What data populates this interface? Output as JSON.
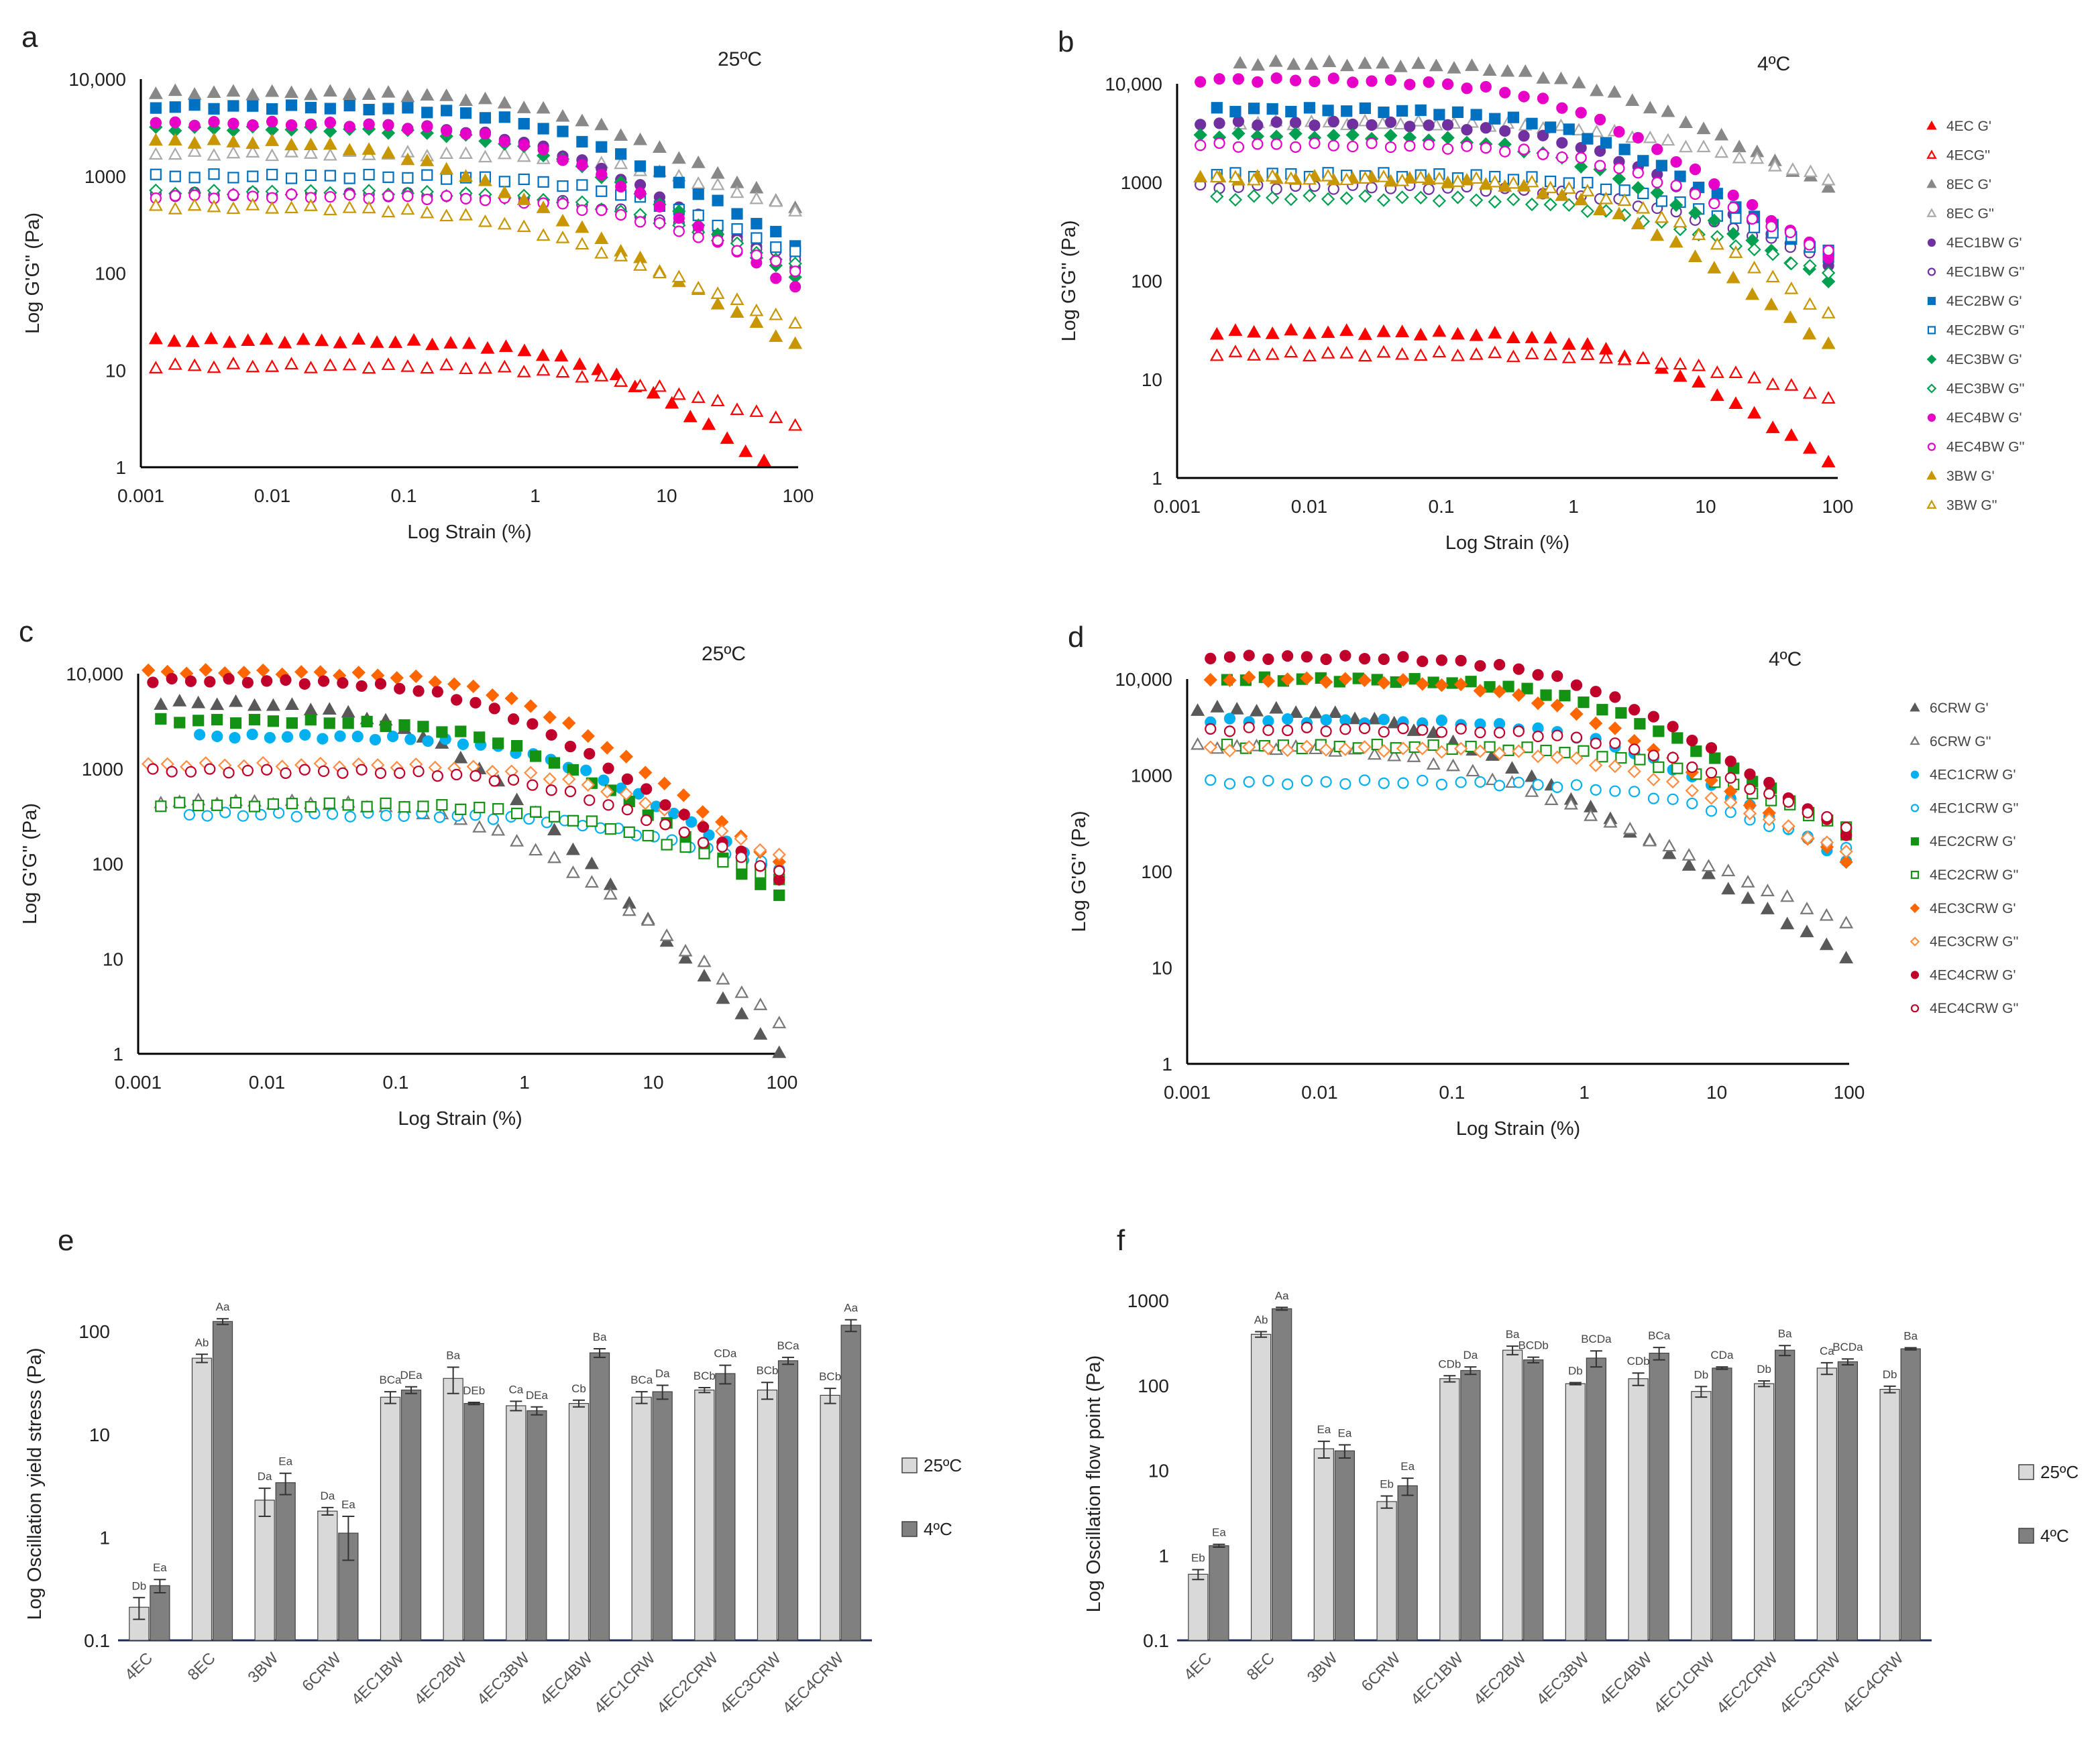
{
  "figure": {
    "panel_labels": [
      "a",
      "b",
      "c",
      "d",
      "e",
      "f"
    ],
    "temperatures": [
      "25ºC",
      "4ºC",
      "25ºC",
      "4ºC"
    ]
  },
  "chart_data": [
    {
      "id": "a",
      "type": "scatter",
      "temp_label": "25ºC",
      "xlabel": "Log Strain (%)",
      "ylabel": "Log G'G'' (Pa)",
      "x_scale": "log",
      "y_scale": "log",
      "xlim": [
        0.001,
        100
      ],
      "ylim": [
        1,
        10000
      ],
      "x_ticks": [
        "0.001",
        "0.01",
        "0.1",
        "1",
        "10",
        "100"
      ],
      "y_ticks": [
        "1",
        "10",
        "100",
        "1000",
        "10,000"
      ],
      "series": [
        {
          "name": "4EC G'",
          "color": "#ff0000",
          "marker": "triangle",
          "filled": true,
          "x_start": 0.0013,
          "x_end": 55,
          "plateau": 20,
          "yc": 3,
          "end": 1.1
        },
        {
          "name": "4ECG''",
          "color": "#ff0000",
          "marker": "triangle",
          "filled": false,
          "x_start": 0.0013,
          "x_end": 95,
          "plateau": 11,
          "yc": 3,
          "end": 2.8
        },
        {
          "name": "8EC G'",
          "color": "#888888",
          "marker": "triangle",
          "filled": true,
          "x_start": 0.0013,
          "x_end": 95,
          "plateau": 7200,
          "yc": 1.2,
          "end": 470
        },
        {
          "name": "8EC G''",
          "color": "#aaaaaa",
          "marker": "triangle",
          "filled": false,
          "x_start": 0.0013,
          "x_end": 95,
          "plateau": 1700,
          "yc": 5,
          "end": 450
        },
        {
          "name": "4EC1BW G'",
          "color": "#7030a0",
          "marker": "circle",
          "filled": true,
          "x_start": 0.0013,
          "x_end": 95,
          "plateau": 3500,
          "yc": 1,
          "end": 110
        },
        {
          "name": "4EC1BW G''",
          "color": "#7030a0",
          "marker": "circle",
          "filled": false,
          "x_start": 0.0013,
          "x_end": 95,
          "plateau": 650,
          "yc": 3,
          "end": 140
        },
        {
          "name": "4EC2BW G'",
          "color": "#0070c0",
          "marker": "square",
          "filled": true,
          "x_start": 0.0013,
          "x_end": 95,
          "plateau": 5200,
          "yc": 1.2,
          "end": 200
        },
        {
          "name": "4EC2BW G''",
          "color": "#0070c0",
          "marker": "square",
          "filled": false,
          "x_start": 0.0013,
          "x_end": 95,
          "plateau": 1000,
          "yc": 4,
          "end": 160
        },
        {
          "name": "4EC3BW G'",
          "color": "#00a050",
          "marker": "diamond",
          "filled": true,
          "x_start": 0.0013,
          "x_end": 95,
          "plateau": 3100,
          "yc": 1,
          "end": 90
        },
        {
          "name": "4EC3BW G''",
          "color": "#00a050",
          "marker": "diamond",
          "filled": false,
          "x_start": 0.0013,
          "x_end": 95,
          "plateau": 680,
          "yc": 3,
          "end": 120
        },
        {
          "name": "4EC4BW G'",
          "color": "#e600c8",
          "marker": "circle",
          "filled": true,
          "x_start": 0.0013,
          "x_end": 95,
          "plateau": 3500,
          "yc": 1,
          "end": 70
        },
        {
          "name": "4EC4BW G''",
          "color": "#e600c8",
          "marker": "circle",
          "filled": false,
          "x_start": 0.0013,
          "x_end": 95,
          "plateau": 620,
          "yc": 3,
          "end": 110
        },
        {
          "name": "3BW G'",
          "color": "#c89600",
          "marker": "triangle",
          "filled": true,
          "x_start": 0.0013,
          "x_end": 95,
          "plateau": 2300,
          "yc": 0.15,
          "end": 18
        },
        {
          "name": "3BW G''",
          "color": "#c89600",
          "marker": "triangle",
          "filled": false,
          "x_start": 0.0013,
          "x_end": 95,
          "plateau": 480,
          "yc": 0.5,
          "end": 30
        }
      ]
    },
    {
      "id": "b",
      "type": "scatter",
      "temp_label": "4ºC",
      "xlabel": "Log Strain (%)",
      "ylabel": "Log G'G'' (Pa)",
      "x_scale": "log",
      "y_scale": "log",
      "xlim": [
        0.001,
        100
      ],
      "ylim": [
        1,
        10000
      ],
      "x_ticks": [
        "0.001",
        "0.01",
        "0.1",
        "1",
        "10",
        "100"
      ],
      "y_ticks": [
        "1",
        "10",
        "100",
        "1000",
        "10,000"
      ],
      "series": [
        {
          "name": "4EC G'",
          "color": "#ff0000",
          "marker": "triangle",
          "filled": true,
          "x_start": 0.002,
          "x_end": 85,
          "plateau": 30,
          "yc": 3,
          "end": 1.5
        },
        {
          "name": "4ECG''",
          "color": "#ff0000",
          "marker": "triangle",
          "filled": false,
          "x_start": 0.002,
          "x_end": 85,
          "plateau": 18,
          "yc": 8,
          "end": 6.5
        },
        {
          "name": "8EC G'",
          "color": "#888888",
          "marker": "triangle",
          "filled": true,
          "x_start": 0.003,
          "x_end": 85,
          "plateau": 16000,
          "yc": 1,
          "end": 900
        },
        {
          "name": "8EC G''",
          "color": "#aaaaaa",
          "marker": "triangle",
          "filled": false,
          "x_start": 0.003,
          "x_end": 85,
          "plateau": 4000,
          "yc": 2,
          "end": 1100
        },
        {
          "name": "4EC1BW G'",
          "color": "#7030a0",
          "marker": "circle",
          "filled": true,
          "x_start": 0.0015,
          "x_end": 85,
          "plateau": 4000,
          "yc": 1,
          "end": 150
        },
        {
          "name": "4EC1BW G''",
          "color": "#7030a0",
          "marker": "circle",
          "filled": false,
          "x_start": 0.0015,
          "x_end": 85,
          "plateau": 900,
          "yc": 2,
          "end": 170
        },
        {
          "name": "4EC2BW G'",
          "color": "#0070c0",
          "marker": "square",
          "filled": true,
          "x_start": 0.002,
          "x_end": 85,
          "plateau": 5500,
          "yc": 1,
          "end": 170
        },
        {
          "name": "4EC2BW G''",
          "color": "#0070c0",
          "marker": "square",
          "filled": false,
          "x_start": 0.002,
          "x_end": 85,
          "plateau": 1200,
          "yc": 2,
          "end": 200
        },
        {
          "name": "4EC3BW G'",
          "color": "#00a050",
          "marker": "diamond",
          "filled": true,
          "x_start": 0.0015,
          "x_end": 85,
          "plateau": 3000,
          "yc": 0.7,
          "end": 100
        },
        {
          "name": "4EC3BW G''",
          "color": "#00a050",
          "marker": "diamond",
          "filled": false,
          "x_start": 0.002,
          "x_end": 85,
          "plateau": 700,
          "yc": 1.5,
          "end": 120
        },
        {
          "name": "4EC4BW G'",
          "color": "#e600c8",
          "marker": "circle",
          "filled": true,
          "x_start": 0.0015,
          "x_end": 85,
          "plateau": 11000,
          "yc": 0.8,
          "end": 180
        },
        {
          "name": "4EC4BW G''",
          "color": "#e600c8",
          "marker": "circle",
          "filled": false,
          "x_start": 0.0015,
          "x_end": 85,
          "plateau": 2400,
          "yc": 1.5,
          "end": 200
        },
        {
          "name": "3BW G'",
          "color": "#c89600",
          "marker": "triangle",
          "filled": true,
          "x_start": 0.0015,
          "x_end": 85,
          "plateau": 1100,
          "yc": 1.5,
          "end": 22
        },
        {
          "name": "3BW G''",
          "color": "#c89600",
          "marker": "triangle",
          "filled": false,
          "x_start": 0.002,
          "x_end": 85,
          "plateau": 1100,
          "yc": 3,
          "end": 45
        }
      ],
      "legend": [
        "4EC G'",
        "4ECG''",
        "8EC G'",
        "8EC G''",
        "4EC1BW G'",
        "4EC1BW G''",
        "4EC2BW G'",
        "4EC2BW G''",
        "4EC3BW G'",
        "4EC3BW G''",
        "4EC4BW G'",
        "4EC4BW G''",
        "3BW G'",
        "3BW G''"
      ]
    },
    {
      "id": "c",
      "type": "scatter",
      "temp_label": "25ºC",
      "xlabel": "Log Strain (%)",
      "ylabel": "Log G'G'' (Pa)",
      "x_scale": "log",
      "y_scale": "log",
      "xlim": [
        0.001,
        100
      ],
      "ylim": [
        1,
        10000
      ],
      "x_ticks": [
        "0.001",
        "0.01",
        "0.1",
        "1",
        "10",
        "100"
      ],
      "y_ticks": [
        "1",
        "10",
        "100",
        "1000",
        "10,000"
      ],
      "series": [
        {
          "name": "6CRW G'",
          "color": "#595959",
          "marker": "triangle",
          "filled": true,
          "x_start": 0.0015,
          "x_end": 95,
          "plateau": 5000,
          "yc": 0.2,
          "end": 1
        },
        {
          "name": "6CRW G''",
          "color": "#777777",
          "marker": "triangle",
          "filled": false,
          "x_start": 0.0015,
          "x_end": 95,
          "plateau": 450,
          "yc": 0.6,
          "end": 2.2
        },
        {
          "name": "4EC1CRW G'",
          "color": "#00b0f0",
          "marker": "circle",
          "filled": true,
          "x_start": 0.003,
          "x_end": 95,
          "plateau": 2200,
          "yc": 1.5,
          "end": 80
        },
        {
          "name": "4EC1CRW G''",
          "color": "#00b0f0",
          "marker": "circle",
          "filled": false,
          "x_start": 0.0025,
          "x_end": 95,
          "plateau": 330,
          "yc": 3,
          "end": 90
        },
        {
          "name": "4EC2CRW G'",
          "color": "#139213",
          "marker": "square",
          "filled": true,
          "x_start": 0.0015,
          "x_end": 95,
          "plateau": 3200,
          "yc": 0.8,
          "end": 45
        },
        {
          "name": "4EC2CRW G''",
          "color": "#139213",
          "marker": "square",
          "filled": false,
          "x_start": 0.0015,
          "x_end": 95,
          "plateau": 420,
          "yc": 2,
          "end": 70
        },
        {
          "name": "4EC3CRW G'",
          "color": "#ff6600",
          "marker": "diamond",
          "filled": true,
          "x_start": 0.0012,
          "x_end": 95,
          "plateau": 10500,
          "yc": 0.8,
          "end": 100
        },
        {
          "name": "4EC3CRW G''",
          "color": "#ff8c40",
          "marker": "diamond",
          "filled": false,
          "x_start": 0.0012,
          "x_end": 95,
          "plateau": 1100,
          "yc": 2.5,
          "end": 120
        },
        {
          "name": "4EC4CRW G'",
          "color": "#c0002a",
          "marker": "circle",
          "filled": true,
          "x_start": 0.0013,
          "x_end": 95,
          "plateau": 8500,
          "yc": 0.5,
          "end": 70
        },
        {
          "name": "4EC4CRW G''",
          "color": "#c0002a",
          "marker": "circle",
          "filled": false,
          "x_start": 0.0013,
          "x_end": 95,
          "plateau": 950,
          "yc": 1.5,
          "end": 80
        }
      ]
    },
    {
      "id": "d",
      "type": "scatter",
      "temp_label": "4ºC",
      "xlabel": "Log Strain (%)",
      "ylabel": "Log G'G'' (Pa)",
      "x_scale": "log",
      "y_scale": "log",
      "xlim": [
        0.001,
        100
      ],
      "ylim": [
        1,
        10000
      ],
      "x_ticks": [
        "0.001",
        "0.01",
        "0.1",
        "1",
        "10",
        "100"
      ],
      "y_ticks": [
        "1",
        "10",
        "100",
        "1000",
        "10,000"
      ],
      "series": [
        {
          "name": "6CRW G'",
          "color": "#595959",
          "marker": "triangle",
          "filled": true,
          "x_start": 0.0012,
          "x_end": 95,
          "plateau": 5000,
          "yc": 0.06,
          "end": 13
        },
        {
          "name": "6CRW G''",
          "color": "#777777",
          "marker": "triangle",
          "filled": false,
          "x_start": 0.0012,
          "x_end": 95,
          "plateau": 2000,
          "yc": 0.08,
          "end": 28
        },
        {
          "name": "4EC1CRW G'",
          "color": "#00b0f0",
          "marker": "circle",
          "filled": true,
          "x_start": 0.0015,
          "x_end": 95,
          "plateau": 3700,
          "yc": 1.5,
          "end": 130
        },
        {
          "name": "4EC1CRW G''",
          "color": "#00b0f0",
          "marker": "circle",
          "filled": false,
          "x_start": 0.0015,
          "x_end": 95,
          "plateau": 850,
          "yc": 3,
          "end": 170
        },
        {
          "name": "4EC2CRW G'",
          "color": "#139213",
          "marker": "square",
          "filled": true,
          "x_start": 0.002,
          "x_end": 95,
          "plateau": 10000,
          "yc": 1,
          "end": 250
        },
        {
          "name": "4EC2CRW G''",
          "color": "#139213",
          "marker": "square",
          "filled": false,
          "x_start": 0.002,
          "x_end": 95,
          "plateau": 2000,
          "yc": 3,
          "end": 280
        },
        {
          "name": "4EC3CRW G'",
          "color": "#ff6600",
          "marker": "diamond",
          "filled": true,
          "x_start": 0.0015,
          "x_end": 95,
          "plateau": 10000,
          "yc": 0.5,
          "end": 130
        },
        {
          "name": "4EC3CRW G''",
          "color": "#ff8c40",
          "marker": "diamond",
          "filled": false,
          "x_start": 0.0015,
          "x_end": 95,
          "plateau": 1900,
          "yc": 1.5,
          "end": 160
        },
        {
          "name": "4EC4CRW G'",
          "color": "#c0002a",
          "marker": "circle",
          "filled": true,
          "x_start": 0.0015,
          "x_end": 95,
          "plateau": 17000,
          "yc": 0.8,
          "end": 250
        },
        {
          "name": "4EC4CRW G''",
          "color": "#c0002a",
          "marker": "circle",
          "filled": false,
          "x_start": 0.0015,
          "x_end": 95,
          "plateau": 3000,
          "yc": 2,
          "end": 290
        }
      ],
      "legend": [
        "6CRW G'",
        "6CRW G''",
        "4EC1CRW G'",
        "4EC1CRW G''",
        "4EC2CRW G'",
        "4EC2CRW G''",
        "4EC3CRW G'",
        "4EC3CRW G''",
        "4EC4CRW G'",
        "4EC4CRW G''"
      ]
    },
    {
      "id": "e",
      "type": "bar",
      "ylabel": "Log Oscillation yield stress (Pa)",
      "y_scale": "log",
      "ylim": [
        0.1,
        200
      ],
      "y_ticks": [
        "0.1",
        "1",
        "10",
        "100"
      ],
      "categories": [
        "4EC",
        "8EC",
        "3BW",
        "6CRW",
        "4EC1BW",
        "4EC2BW",
        "4EC3BW",
        "4EC4BW",
        "4EC1CRW",
        "4EC2CRW",
        "4EC3CRW",
        "4EC4CRW"
      ],
      "series": [
        {
          "name": "25ºC",
          "color": "#d9d9d9",
          "values": [
            0.21,
            55,
            2.3,
            1.8,
            23,
            35,
            19,
            20,
            23,
            27,
            27,
            24
          ],
          "errors": [
            0.05,
            5,
            0.7,
            0.15,
            3,
            10,
            2,
            1.5,
            3,
            1.5,
            5,
            4
          ],
          "labels": [
            "Db",
            "Ab",
            "Da",
            "Da",
            "BCa",
            "Ba",
            "Ca",
            "Cb",
            "BCa",
            "BCb",
            "BCb",
            "BCb"
          ]
        },
        {
          "name": "4ºC",
          "color": "#808080",
          "values": [
            0.34,
            125,
            3.4,
            1.1,
            27,
            20,
            17,
            62,
            26,
            39,
            52,
            115
          ],
          "errors": [
            0.05,
            8,
            0.8,
            0.5,
            2,
            0.5,
            1.5,
            6,
            4,
            8,
            4,
            15
          ],
          "labels": [
            "Ea",
            "Aa",
            "Ea",
            "Ea",
            "DEa",
            "DEb",
            "DEa",
            "Ba",
            "Da",
            "CDa",
            "BCa",
            "Aa"
          ]
        }
      ]
    },
    {
      "id": "f",
      "type": "bar",
      "ylabel": "Log Oscillation flow point (Pa)",
      "y_scale": "log",
      "ylim": [
        0.1,
        1000
      ],
      "y_ticks": [
        "0.1",
        "1",
        "10",
        "100",
        "1000"
      ],
      "categories": [
        "4EC",
        "8EC",
        "3BW",
        "6CRW",
        "4EC1BW",
        "4EC2BW",
        "4EC3BW",
        "4EC4BW",
        "4EC1CRW",
        "4EC2CRW",
        "4EC3CRW",
        "4EC4CRW"
      ],
      "series": [
        {
          "name": "25ºC",
          "color": "#d9d9d9",
          "values": [
            0.6,
            400,
            18,
            4.3,
            120,
            260,
            105,
            120,
            85,
            105,
            160,
            90
          ],
          "errors": [
            0.08,
            30,
            4,
            0.7,
            10,
            30,
            3,
            20,
            12,
            8,
            25,
            8
          ],
          "labels": [
            "Eb",
            "Ab",
            "Ea",
            "Eb",
            "CDb",
            "Ba",
            "Db",
            "CDb",
            "Db",
            "Db",
            "Ca",
            "Db"
          ]
        },
        {
          "name": "4ºC",
          "color": "#808080",
          "values": [
            1.3,
            800,
            17,
            6.6,
            150,
            200,
            210,
            240,
            160,
            260,
            190,
            270
          ],
          "errors": [
            0.05,
            30,
            3,
            1.5,
            15,
            15,
            45,
            40,
            5,
            35,
            15,
            8
          ],
          "labels": [
            "Ea",
            "Aa",
            "Ea",
            "Ea",
            "Da",
            "BCDb",
            "BCDa",
            "BCa",
            "CDa",
            "Ba",
            "BCDa",
            "Ba"
          ]
        }
      ]
    }
  ]
}
